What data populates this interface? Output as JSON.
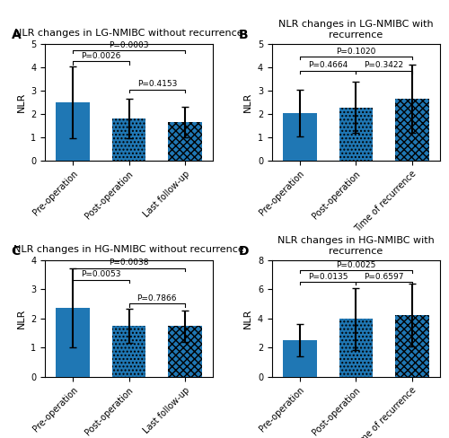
{
  "chart_data": [
    {
      "type": "bar",
      "panel_label": "A",
      "title": "NLR changes in LG-NMIBC without recurrence",
      "categories": [
        "Pre-operation",
        "Post-operation",
        "Last follow-up"
      ],
      "values": [
        2.5,
        1.8,
        1.65
      ],
      "errors": [
        1.55,
        0.85,
        0.65
      ],
      "ylabel": "NLR",
      "ylim": [
        0,
        5
      ],
      "yticks": [
        0,
        1,
        2,
        3,
        4,
        5
      ],
      "brackets": [
        {
          "from": 0,
          "to": 1,
          "y": 4.25,
          "label": "P=0.0026"
        },
        {
          "from": 0,
          "to": 2,
          "y": 4.72,
          "label": "P=0.0003"
        },
        {
          "from": 1,
          "to": 2,
          "y": 3.05,
          "label": "P=0.4153"
        }
      ]
    },
    {
      "type": "bar",
      "panel_label": "B",
      "title": "NLR changes in LG-NMIBC with recurrence",
      "categories": [
        "Pre-operation",
        "Post-operation",
        "Time of recurrence"
      ],
      "values": [
        2.05,
        2.28,
        2.65
      ],
      "errors": [
        1.0,
        1.08,
        1.45
      ],
      "ylabel": "NLR",
      "ylim": [
        0,
        5
      ],
      "yticks": [
        0,
        1,
        2,
        3,
        4,
        5
      ],
      "brackets": [
        {
          "from": 0,
          "to": 1,
          "y": 3.85,
          "label": "P=0.4664"
        },
        {
          "from": 0,
          "to": 2,
          "y": 4.45,
          "label": "P=0.1020"
        },
        {
          "from": 1,
          "to": 2,
          "y": 3.85,
          "label": "P=0.3422"
        }
      ]
    },
    {
      "type": "bar",
      "panel_label": "C",
      "title": "NLR changes in HG-NMIBC without recurrence",
      "categories": [
        "Pre-operation",
        "Post-operation",
        "Last follow-up"
      ],
      "values": [
        2.35,
        1.75,
        1.73
      ],
      "errors": [
        1.35,
        0.58,
        0.55
      ],
      "ylabel": "NLR",
      "ylim": [
        0,
        4
      ],
      "yticks": [
        0,
        1,
        2,
        3,
        4
      ],
      "brackets": [
        {
          "from": 0,
          "to": 1,
          "y": 3.32,
          "label": "P=0.0053"
        },
        {
          "from": 0,
          "to": 2,
          "y": 3.72,
          "label": "P=0.0038"
        },
        {
          "from": 1,
          "to": 2,
          "y": 2.5,
          "label": "P=0.7866"
        }
      ]
    },
    {
      "type": "bar",
      "panel_label": "D",
      "title": "NLR changes in HG-NMIBC with recurrence",
      "categories": [
        "Pre-operation",
        "Post-operation",
        "Time of recurrence"
      ],
      "values": [
        2.5,
        3.95,
        4.2
      ],
      "errors": [
        1.1,
        2.1,
        2.15
      ],
      "ylabel": "NLR",
      "ylim": [
        0,
        8
      ],
      "yticks": [
        0,
        2,
        4,
        6,
        8
      ],
      "brackets": [
        {
          "from": 0,
          "to": 1,
          "y": 6.5,
          "label": "P=0.0135"
        },
        {
          "from": 0,
          "to": 2,
          "y": 7.3,
          "label": "P=0.0025"
        },
        {
          "from": 1,
          "to": 2,
          "y": 6.5,
          "label": "P=0.6597"
        }
      ]
    }
  ]
}
